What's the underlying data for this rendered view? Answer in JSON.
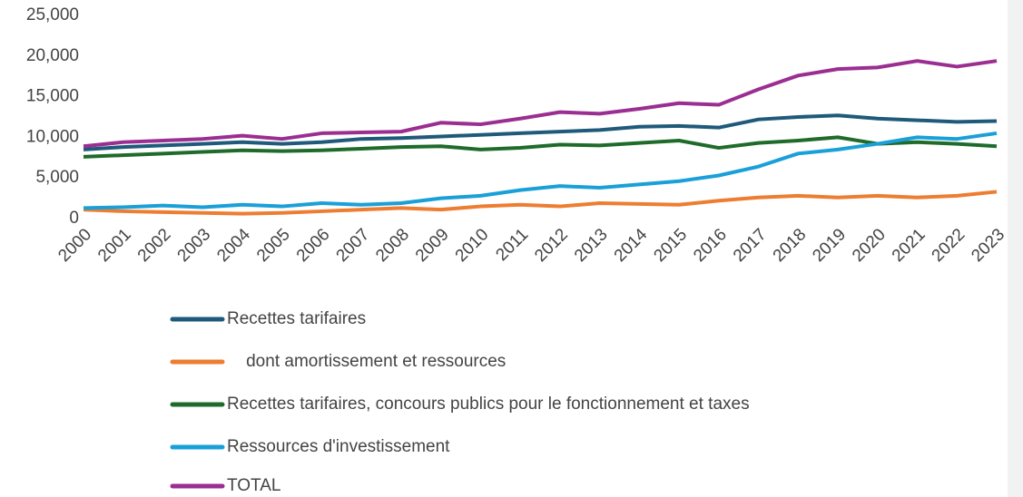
{
  "chart_data": {
    "type": "line",
    "categories": [
      "2000",
      "2001",
      "2002",
      "2003",
      "2004",
      "2005",
      "2006",
      "2007",
      "2008",
      "2009",
      "2010",
      "2011",
      "2012",
      "2013",
      "2014",
      "2015",
      "2016",
      "2017",
      "2018",
      "2019",
      "2020",
      "2021",
      "2022",
      "2023"
    ],
    "series": [
      {
        "name": "Recettes tarifaires",
        "color": "#1f5a7a",
        "values": [
          8500,
          8800,
          9000,
          9200,
          9400,
          9200,
          9400,
          9800,
          9900,
          10100,
          10300,
          10500,
          10700,
          10900,
          11300,
          11400,
          11200,
          12200,
          12500,
          12700,
          12300,
          12100,
          11900,
          12000
        ]
      },
      {
        "name": "    dont amortissement et ressources",
        "color": "#ed7d31",
        "values": [
          1100,
          900,
          800,
          700,
          600,
          700,
          900,
          1100,
          1300,
          1100,
          1500,
          1700,
          1500,
          1900,
          1800,
          1700,
          2200,
          2600,
          2800,
          2600,
          2800,
          2600,
          2800,
          3300
        ]
      },
      {
        "name": "Recettes tarifaires, concours publics pour le fonctionnement et taxes",
        "color": "#1e6b2a",
        "values": [
          7600,
          7800,
          8000,
          8200,
          8400,
          8300,
          8400,
          8600,
          8800,
          8900,
          8500,
          8700,
          9100,
          9000,
          9300,
          9600,
          8700,
          9300,
          9600,
          10000,
          9200,
          9400,
          9200,
          8900
        ]
      },
      {
        "name": "Ressources d'investissement",
        "color": "#1aa0d8",
        "values": [
          1300,
          1400,
          1600,
          1400,
          1700,
          1500,
          1900,
          1700,
          1900,
          2500,
          2800,
          3500,
          4000,
          3800,
          4200,
          4600,
          5300,
          6400,
          8000,
          8500,
          9200,
          10000,
          9800,
          10500
        ]
      },
      {
        "name": "TOTAL",
        "color": "#9b2e91",
        "values": [
          8900,
          9400,
          9600,
          9800,
          10200,
          9800,
          10500,
          10600,
          10700,
          11800,
          11600,
          12300,
          13100,
          12900,
          13500,
          14200,
          14000,
          15900,
          17600,
          18400,
          18600,
          19400,
          18700,
          19400
        ]
      }
    ],
    "ylim": [
      0,
      25000
    ],
    "yticks": [
      0,
      {
        "value": 5000,
        "label": "5,000"
      },
      {
        "value": 10000,
        "label": "10,000"
      },
      {
        "value": 15000,
        "label": "15,000"
      },
      {
        "value": 20000,
        "label": "20,000"
      },
      {
        "value": 25000,
        "label": "25,000"
      }
    ],
    "grid": false,
    "legend": "bottom"
  }
}
